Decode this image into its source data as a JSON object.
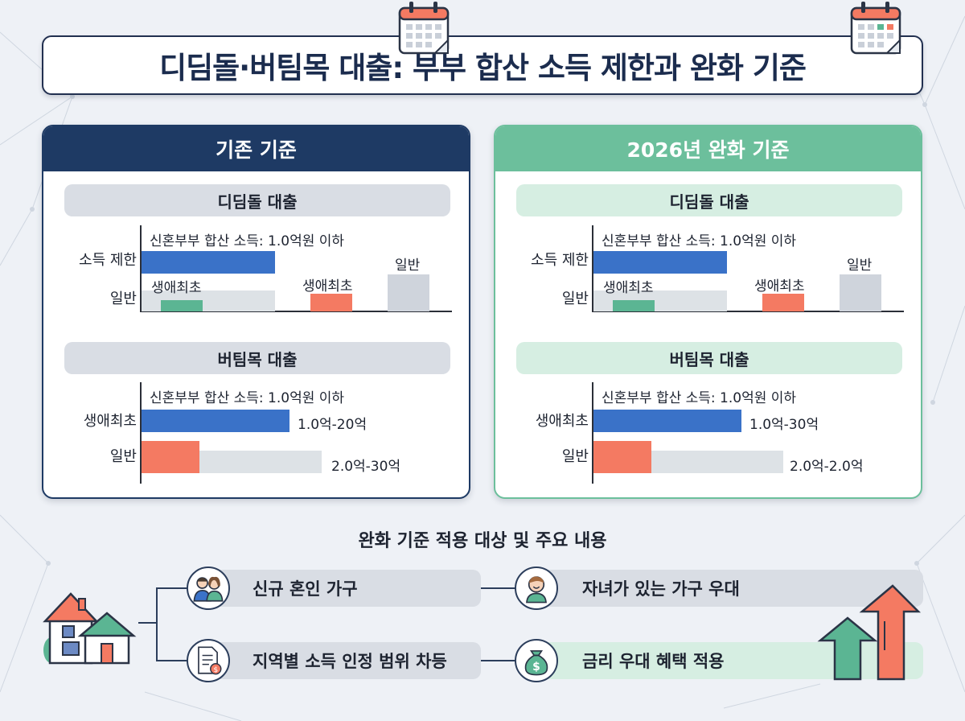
{
  "title": "디딤돌·버팀목 대출: 부부 합산 소득 제한과 완화 기준",
  "colors": {
    "navy": "#1e3a64",
    "green": "#6cbf9c",
    "blue_bar": "#3a72c8",
    "teal_bar": "#5bb593",
    "orange_bar": "#f47a62",
    "gray_bar": "#cfd4dc",
    "light_bar": "#dde2e6"
  },
  "left_panel": {
    "header": "기존 기준",
    "didimdol": {
      "label": "디딤돌 대출",
      "row1_label": "소득 제한",
      "row2_label": "일반",
      "bar_text": "신혼부부 합산 소득: 1.0억원 이하",
      "first_time_label": "생애최초",
      "first_time_label2": "생애최초",
      "general_label": "일반"
    },
    "beotimmok": {
      "label": "버팀목 대출",
      "row1_label": "생애최초",
      "row2_label": "일반",
      "bar_text": "신혼부부 합산 소득: 1.0억원 이하",
      "row1_value": "1.0억-20억",
      "row2_value": "2.0억-30억"
    }
  },
  "right_panel": {
    "header": "2026년 완화 기준",
    "didimdol": {
      "label": "디딤돌 대출",
      "row1_label": "소득 제한",
      "row2_label": "일반",
      "bar_text": "신혼부부 합산 소득: 1.0억원 이하",
      "first_time_label": "생애최초",
      "first_time_label2": "생애최초",
      "general_label": "일반"
    },
    "beotimmok": {
      "label": "버팀목 대출",
      "row1_label": "생애최초",
      "row2_label": "일반",
      "bar_text": "신혼부부 합산 소득: 1.0억원 이하",
      "row1_value": "1.0억-30억",
      "row2_value": "2.0억-2.0억"
    }
  },
  "bottom": {
    "title": "완화 기준 적용 대상 및 주요 내용",
    "items": [
      {
        "label": "신규 혼인 가구",
        "icon": "couple-icon"
      },
      {
        "label": "지역별 소득 인정 범위 차등",
        "icon": "document-icon"
      },
      {
        "label": "자녀가 있는 가구 우대",
        "icon": "child-icon"
      },
      {
        "label": "금리 우대 혜택 적용",
        "icon": "money-bag-icon"
      }
    ]
  }
}
